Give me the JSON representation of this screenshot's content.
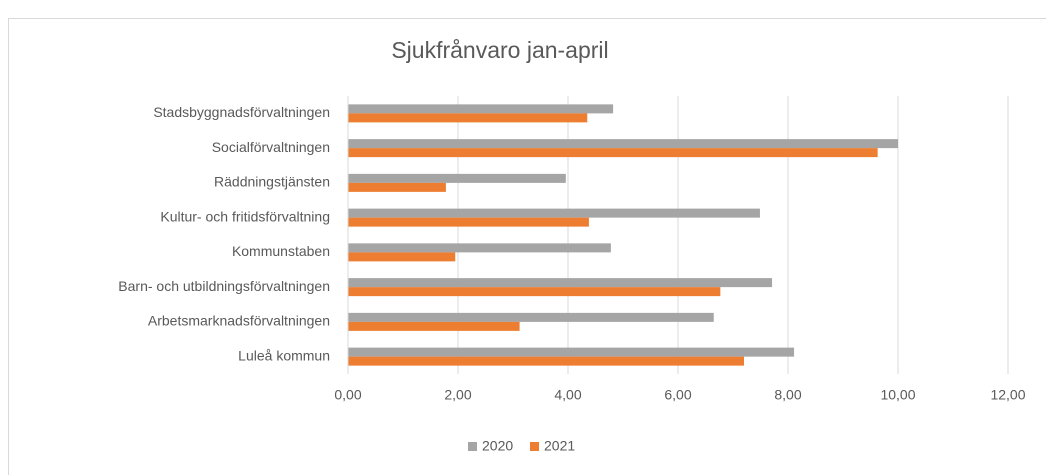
{
  "chart_data": {
    "type": "hbar",
    "title": "Sjukfrånvaro jan-april",
    "categories": [
      "Stadsbyggnadsförvaltningen",
      "Socialförvaltningen",
      "Räddningstjänsten",
      "Kultur- och fritidsförvaltning",
      "Kommunstaben",
      "Barn- och utbildningsförvaltningen",
      "Arbetsmarknadsförvaltningen",
      "Luleå kommun"
    ],
    "series": [
      {
        "name": "2020",
        "color": "#a5a5a5",
        "values": [
          4.82,
          10.0,
          3.96,
          7.49,
          4.78,
          7.71,
          6.65,
          8.11
        ]
      },
      {
        "name": "2021",
        "color": "#ed7d31",
        "values": [
          4.35,
          9.63,
          1.78,
          4.38,
          1.95,
          6.77,
          3.12,
          7.2
        ]
      }
    ],
    "xlim": [
      0,
      12
    ],
    "xticks": [
      {
        "value": 0,
        "label": "0,00"
      },
      {
        "value": 2,
        "label": "2,00"
      },
      {
        "value": 4,
        "label": "4,00"
      },
      {
        "value": 6,
        "label": "6,00"
      },
      {
        "value": 8,
        "label": "8,00"
      },
      {
        "value": 10,
        "label": "10,00"
      },
      {
        "value": 12,
        "label": "12,00"
      }
    ],
    "grid": true,
    "legend": "bottom"
  }
}
